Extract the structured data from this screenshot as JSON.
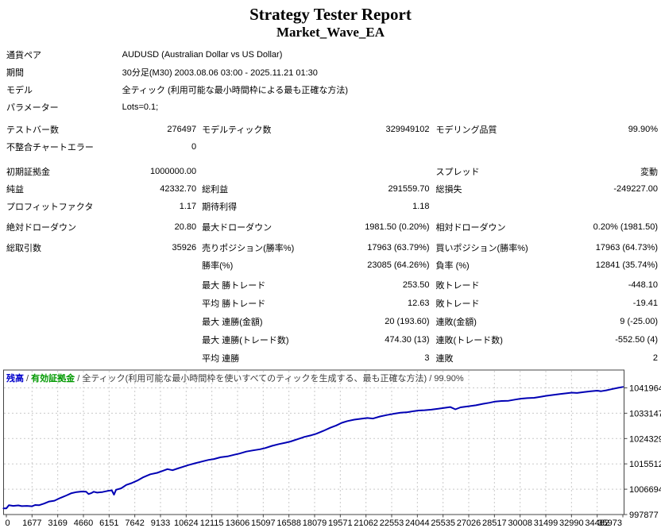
{
  "title": "Strategy Tester Report",
  "subtitle": "Market_Wave_EA",
  "info": {
    "symbol": {
      "label": "通貨ペア",
      "value": "AUDUSD (Australian Dollar vs US Dollar)"
    },
    "period": {
      "label": "期間",
      "value": "30分足(M30) 2003.08.06 03:00 - 2025.11.21 01:30"
    },
    "model": {
      "label": "モデル",
      "value": "全ティック (利用可能な最小時間枠による最も正確な方法)"
    },
    "parameters": {
      "label": "パラメーター",
      "value": "Lots=0.1;"
    }
  },
  "stats": {
    "test_bars": {
      "label": "テストバー数",
      "value": "276497"
    },
    "model_ticks": {
      "label": "モデルティック数",
      "value": "329949102"
    },
    "modeling_quality": {
      "label": "モデリング品質",
      "value": "99.90%"
    },
    "mismatch_errors": {
      "label": "不整合チャートエラー",
      "value": "0"
    },
    "initial_deposit": {
      "label": "初期証拠金",
      "value": "1000000.00"
    },
    "spread": {
      "label": "スプレッド",
      "value": "変動"
    },
    "net_profit": {
      "label": "純益",
      "value": "42332.70"
    },
    "gross_profit": {
      "label": "総利益",
      "value": "291559.70"
    },
    "gross_loss": {
      "label": "総損失",
      "value": "-249227.00"
    },
    "profit_factor": {
      "label": "プロフィットファクタ",
      "value": "1.17"
    },
    "expected_payoff": {
      "label": "期待利得",
      "value": "1.18"
    },
    "absolute_drawdown": {
      "label": "絶対ドローダウン",
      "value": "20.80"
    },
    "maximal_drawdown": {
      "label": "最大ドローダウン",
      "value": "1981.50 (0.20%)"
    },
    "relative_drawdown": {
      "label": "相対ドローダウン",
      "value": "0.20% (1981.50)"
    },
    "total_trades": {
      "label": "総取引数",
      "value": "35926"
    },
    "short_positions": {
      "label": "売りポジション(勝率%)",
      "value": "17963 (63.79%)"
    },
    "long_positions": {
      "label": "買いポジション(勝率%)",
      "value": "17963 (64.73%)"
    },
    "profit_trades": {
      "label": "勝率(%)",
      "value": "23085 (64.26%)"
    },
    "loss_trades": {
      "label": "負率 (%)",
      "value": "12841 (35.74%)"
    },
    "largest_profit": {
      "label": "最大 勝トレード",
      "value": "253.50"
    },
    "largest_loss": {
      "label": "敗トレード",
      "value": "-448.10"
    },
    "average_profit": {
      "label": "平均 勝トレード",
      "value": "12.63"
    },
    "average_loss": {
      "label": "敗トレード",
      "value": "-19.41"
    },
    "max_consec_wins": {
      "label": "最大 連勝(金額)",
      "value": "20 (193.60)"
    },
    "max_consec_losses": {
      "label": "連敗(金額)",
      "value": "9 (-25.00)"
    },
    "max_consec_profit": {
      "label": "最大 連勝(トレード数)",
      "value": "474.30 (13)"
    },
    "max_consec_loss": {
      "label": "連敗(トレード数)",
      "value": "-552.50 (4)"
    },
    "avg_consec_wins": {
      "label": "平均 連勝",
      "value": "3"
    },
    "avg_consec_losses": {
      "label": "連敗",
      "value": "2"
    }
  },
  "chart_data": {
    "type": "line",
    "header": {
      "balance": "残高",
      "equity": "有効証拠金",
      "sep": " / ",
      "model": "全ティック(利用可能な最小時間枠を使いすべてのティックを生成する、最も正確な方法)",
      "quality": "99.90%"
    },
    "colors": {
      "balance_label": "#0000CC",
      "equity_label": "#009900",
      "line": "#0000B4",
      "grid": "#c9c9c9",
      "border": "#444444"
    },
    "grid": "dashed",
    "legend_position": "top-left",
    "xlabel": "",
    "ylabel": "",
    "x_ticks": [
      0,
      1677,
      3169,
      4660,
      6151,
      7642,
      9133,
      10624,
      12115,
      13606,
      15097,
      16588,
      18079,
      19571,
      21062,
      22553,
      24044,
      25535,
      27026,
      28517,
      30008,
      31499,
      32990,
      34482,
      35973
    ],
    "y_ticks": [
      997877,
      1006694,
      1015512,
      1024329,
      1033147,
      1041964
    ],
    "xlim": [
      0,
      35973
    ],
    "ylim": [
      997877,
      1043000
    ],
    "series": [
      {
        "name": "残高",
        "points": [
          [
            0,
            1000000
          ],
          [
            150,
            1001100
          ],
          [
            400,
            1000900
          ],
          [
            700,
            1001050
          ],
          [
            900,
            1000800
          ],
          [
            1200,
            1000900
          ],
          [
            1500,
            1000750
          ],
          [
            1677,
            1001200
          ],
          [
            1900,
            1001100
          ],
          [
            2200,
            1001700
          ],
          [
            2500,
            1002400
          ],
          [
            2800,
            1002700
          ],
          [
            3169,
            1003700
          ],
          [
            3500,
            1004500
          ],
          [
            3800,
            1005300
          ],
          [
            4100,
            1005700
          ],
          [
            4400,
            1005900
          ],
          [
            4660,
            1005800
          ],
          [
            4800,
            1005000
          ],
          [
            4950,
            1005300
          ],
          [
            5100,
            1005800
          ],
          [
            5300,
            1005500
          ],
          [
            5600,
            1005700
          ],
          [
            5900,
            1006100
          ],
          [
            6151,
            1006300
          ],
          [
            6280,
            1004800
          ],
          [
            6400,
            1006500
          ],
          [
            6700,
            1007000
          ],
          [
            7000,
            1008200
          ],
          [
            7300,
            1008800
          ],
          [
            7642,
            1009700
          ],
          [
            8000,
            1010900
          ],
          [
            8400,
            1011900
          ],
          [
            8800,
            1012400
          ],
          [
            9133,
            1013100
          ],
          [
            9400,
            1013700
          ],
          [
            9700,
            1013300
          ],
          [
            10000,
            1013900
          ],
          [
            10300,
            1014500
          ],
          [
            10624,
            1015100
          ],
          [
            11000,
            1015700
          ],
          [
            11400,
            1016300
          ],
          [
            11800,
            1016900
          ],
          [
            12115,
            1017200
          ],
          [
            12500,
            1017800
          ],
          [
            12900,
            1018100
          ],
          [
            13300,
            1018700
          ],
          [
            13606,
            1019100
          ],
          [
            14000,
            1019800
          ],
          [
            14400,
            1020200
          ],
          [
            14800,
            1020600
          ],
          [
            15097,
            1021000
          ],
          [
            15500,
            1021800
          ],
          [
            15900,
            1022400
          ],
          [
            16300,
            1022900
          ],
          [
            16588,
            1023300
          ],
          [
            17000,
            1024100
          ],
          [
            17400,
            1024900
          ],
          [
            17800,
            1025500
          ],
          [
            18079,
            1026000
          ],
          [
            18500,
            1027000
          ],
          [
            18900,
            1028100
          ],
          [
            19250,
            1028900
          ],
          [
            19571,
            1029800
          ],
          [
            19900,
            1030400
          ],
          [
            20300,
            1030900
          ],
          [
            20700,
            1031200
          ],
          [
            21062,
            1031500
          ],
          [
            21400,
            1031300
          ],
          [
            21800,
            1032000
          ],
          [
            22200,
            1032500
          ],
          [
            22553,
            1032900
          ],
          [
            23000,
            1033300
          ],
          [
            23400,
            1033500
          ],
          [
            23800,
            1033900
          ],
          [
            24044,
            1034100
          ],
          [
            24400,
            1034200
          ],
          [
            24800,
            1034400
          ],
          [
            25200,
            1034700
          ],
          [
            25535,
            1035000
          ],
          [
            25900,
            1035300
          ],
          [
            26200,
            1034500
          ],
          [
            26500,
            1035200
          ],
          [
            27026,
            1035600
          ],
          [
            27400,
            1035900
          ],
          [
            27800,
            1036400
          ],
          [
            28200,
            1036800
          ],
          [
            28517,
            1037200
          ],
          [
            28900,
            1037400
          ],
          [
            29300,
            1037500
          ],
          [
            29700,
            1037900
          ],
          [
            30008,
            1038200
          ],
          [
            30400,
            1038400
          ],
          [
            30800,
            1038500
          ],
          [
            31200,
            1038900
          ],
          [
            31499,
            1039200
          ],
          [
            31900,
            1039500
          ],
          [
            32300,
            1039800
          ],
          [
            32700,
            1040100
          ],
          [
            32990,
            1040300
          ],
          [
            33300,
            1040200
          ],
          [
            33700,
            1040500
          ],
          [
            34100,
            1040800
          ],
          [
            34482,
            1041000
          ],
          [
            34700,
            1040800
          ],
          [
            35000,
            1041100
          ],
          [
            35300,
            1041500
          ],
          [
            35700,
            1042000
          ],
          [
            35973,
            1042300
          ]
        ]
      }
    ]
  }
}
